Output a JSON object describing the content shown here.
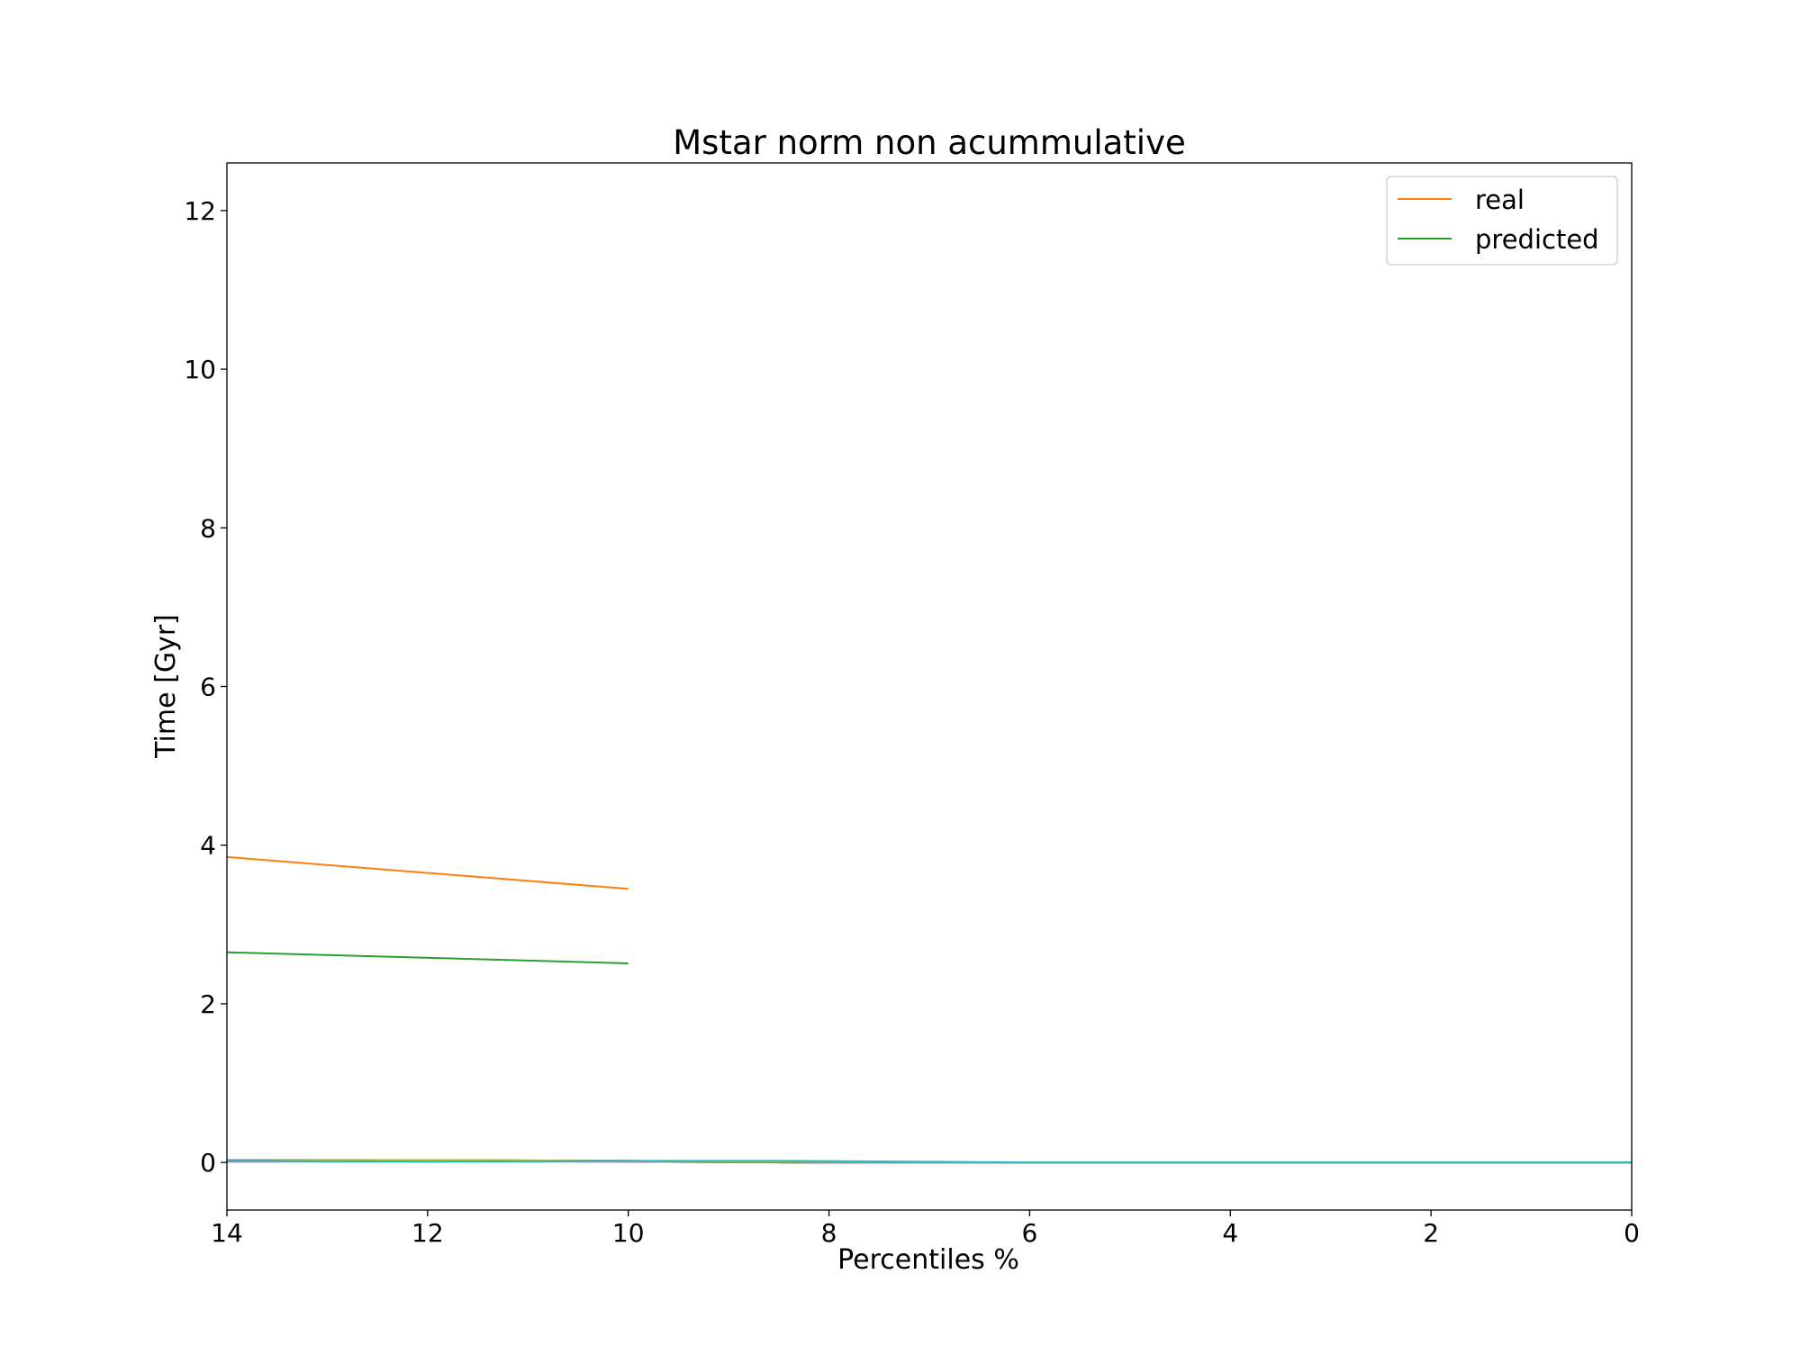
{
  "chart_data": {
    "type": "line",
    "title": "Mstar norm non acummulative",
    "xlabel": "Percentiles %",
    "ylabel": "Time [Gyr]",
    "xlim": [
      14,
      0
    ],
    "ylim": [
      -0.6,
      12.6
    ],
    "x_ticks": [
      14,
      12,
      10,
      8,
      6,
      4,
      2,
      0
    ],
    "y_ticks": [
      0,
      2,
      4,
      6,
      8,
      10,
      12
    ],
    "grid": false,
    "legend_position": "upper right",
    "legend": [
      "real",
      "predicted"
    ],
    "series": [
      {
        "name": "real",
        "color": "#ff7f0e",
        "x": [
          14,
          10
        ],
        "y": [
          3.85,
          3.45
        ]
      },
      {
        "name": "predicted",
        "color": "#2ca02c",
        "x": [
          14,
          10
        ],
        "y": [
          2.65,
          2.51
        ]
      },
      {
        "color": "#1f77b4",
        "x": [
          14,
          12,
          10,
          8.4,
          6,
          4,
          2,
          0
        ],
        "y": [
          0.01,
          0.02,
          0.01,
          0.0,
          0.0,
          0.0,
          0.0,
          0.0
        ]
      },
      {
        "color": "#d62728",
        "x": [
          14,
          12,
          10,
          8.4,
          6,
          4,
          2,
          0
        ],
        "y": [
          0.02,
          0.03,
          0.02,
          0.0,
          0.0,
          0.0,
          0.0,
          0.0
        ]
      },
      {
        "color": "#9467bd",
        "x": [
          14,
          12,
          10,
          8.4,
          6,
          4,
          2,
          0
        ],
        "y": [
          0.03,
          0.03,
          0.02,
          0.0,
          0.0,
          0.0,
          0.0,
          0.0
        ]
      },
      {
        "color": "#8c564b",
        "x": [
          14,
          12,
          10,
          8.4,
          6,
          4,
          2,
          0
        ],
        "y": [
          0.02,
          0.02,
          0.01,
          0.0,
          0.0,
          0.0,
          0.0,
          0.0
        ]
      },
      {
        "color": "#e377c2",
        "x": [
          14,
          12,
          10,
          8.4,
          6,
          4,
          2,
          0
        ],
        "y": [
          0.01,
          0.01,
          0.01,
          0.0,
          0.0,
          0.0,
          0.0,
          0.0
        ]
      },
      {
        "color": "#7f7f7f",
        "x": [
          14,
          12,
          10,
          8.4,
          6,
          4,
          2,
          0
        ],
        "y": [
          0.02,
          0.02,
          0.02,
          0.0,
          0.0,
          0.0,
          0.0,
          0.0
        ]
      },
      {
        "color": "#bcbd22",
        "x": [
          14,
          12,
          10,
          8.4,
          6,
          4,
          2,
          0
        ],
        "y": [
          0.02,
          0.03,
          0.02,
          0.01,
          0.0,
          0.0,
          0.0,
          0.0
        ]
      },
      {
        "color": "#17becf",
        "x": [
          14,
          12,
          10,
          8.4,
          6,
          4,
          2,
          0
        ],
        "y": [
          0.02,
          0.01,
          0.02,
          0.02,
          0.0,
          0.0,
          0.0,
          0.0
        ]
      }
    ]
  }
}
